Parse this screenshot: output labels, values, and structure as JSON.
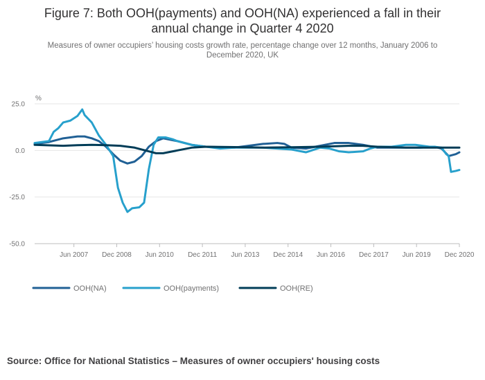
{
  "chart_data": {
    "type": "line",
    "title_line1": "Figure 7: Both OOH(payments) and OOH(NA) experienced a fall in their",
    "title_line2": "annual change in Quarter 4 2020",
    "subtitle_line1": "Measures of owner occupiers’ housing costs growth rate, percentage change over 12 months, January 2006 to",
    "subtitle_line2": "December 2020, UK",
    "ylabel": "%",
    "xlabel": "",
    "ylim": [
      -50,
      25
    ],
    "y_ticks": [
      {
        "value": 25,
        "label": "25.0"
      },
      {
        "value": 0,
        "label": "0.0"
      },
      {
        "value": -25,
        "label": "-25.0"
      },
      {
        "value": -50,
        "label": "-50.0"
      }
    ],
    "x_ticks": [
      {
        "t": 2007.375,
        "label": "Jun 2007"
      },
      {
        "t": 2008.875,
        "label": "Dec 2008"
      },
      {
        "t": 2010.375,
        "label": "Jun 2010"
      },
      {
        "t": 2011.875,
        "label": "Dec 2011"
      },
      {
        "t": 2013.375,
        "label": "Jun 2013"
      },
      {
        "t": 2014.875,
        "label": "Dec 2014"
      },
      {
        "t": 2016.375,
        "label": "Jun 2016"
      },
      {
        "t": 2017.875,
        "label": "Dec 2017"
      },
      {
        "t": 2019.375,
        "label": "Jun 2019"
      },
      {
        "t": 2020.875,
        "label": "Dec 2020"
      }
    ],
    "x_range": [
      2006.0,
      2020.875
    ],
    "series": [
      {
        "name": "OOH(NA)",
        "color": "#206095",
        "points": [
          [
            2006.0,
            3.5
          ],
          [
            2006.5,
            4.5
          ],
          [
            2007.0,
            6.5
          ],
          [
            2007.5,
            7.5
          ],
          [
            2007.75,
            7.5
          ],
          [
            2008.0,
            6.5
          ],
          [
            2008.25,
            5.0
          ],
          [
            2008.5,
            2.0
          ],
          [
            2008.75,
            -2.0
          ],
          [
            2009.0,
            -5.5
          ],
          [
            2009.25,
            -7.0
          ],
          [
            2009.5,
            -6.0
          ],
          [
            2009.75,
            -3.0
          ],
          [
            2010.0,
            2.0
          ],
          [
            2010.25,
            5.0
          ],
          [
            2010.5,
            6.5
          ],
          [
            2011.0,
            5.0
          ],
          [
            2011.5,
            3.0
          ],
          [
            2012.0,
            2.0
          ],
          [
            2013.0,
            1.5
          ],
          [
            2014.0,
            3.5
          ],
          [
            2014.5,
            4.0
          ],
          [
            2014.75,
            3.5
          ],
          [
            2015.0,
            1.5
          ],
          [
            2015.5,
            1.0
          ],
          [
            2016.0,
            2.5
          ],
          [
            2016.5,
            4.0
          ],
          [
            2017.0,
            4.0
          ],
          [
            2017.5,
            3.0
          ],
          [
            2018.0,
            1.5
          ],
          [
            2018.5,
            1.5
          ],
          [
            2019.0,
            1.5
          ],
          [
            2019.5,
            1.5
          ],
          [
            2020.0,
            2.0
          ],
          [
            2020.25,
            1.0
          ],
          [
            2020.5,
            -3.0
          ],
          [
            2020.75,
            -2.0
          ],
          [
            2020.875,
            -1.0
          ]
        ]
      },
      {
        "name": "OOH(payments)",
        "color": "#27a0cc",
        "points": [
          [
            2006.0,
            4.0
          ],
          [
            2006.25,
            4.5
          ],
          [
            2006.5,
            5.0
          ],
          [
            2006.667,
            10.0
          ],
          [
            2006.833,
            12.0
          ],
          [
            2007.0,
            15.0
          ],
          [
            2007.25,
            16.0
          ],
          [
            2007.5,
            18.5
          ],
          [
            2007.667,
            22.0
          ],
          [
            2007.75,
            19.0
          ],
          [
            2008.0,
            15.0
          ],
          [
            2008.25,
            8.0
          ],
          [
            2008.5,
            3.0
          ],
          [
            2008.75,
            -3.0
          ],
          [
            2008.917,
            -20.0
          ],
          [
            2009.083,
            -28.0
          ],
          [
            2009.25,
            -33.0
          ],
          [
            2009.417,
            -31.0
          ],
          [
            2009.667,
            -30.5
          ],
          [
            2009.833,
            -28.0
          ],
          [
            2010.0,
            -10.0
          ],
          [
            2010.167,
            3.0
          ],
          [
            2010.333,
            7.0
          ],
          [
            2010.583,
            7.0
          ],
          [
            2010.833,
            6.0
          ],
          [
            2011.0,
            5.0
          ],
          [
            2011.5,
            3.0
          ],
          [
            2012.0,
            2.0
          ],
          [
            2012.5,
            1.0
          ],
          [
            2013.0,
            1.5
          ],
          [
            2013.5,
            1.5
          ],
          [
            2014.0,
            1.5
          ],
          [
            2014.5,
            1.0
          ],
          [
            2015.0,
            0.5
          ],
          [
            2015.5,
            -1.0
          ],
          [
            2016.0,
            1.5
          ],
          [
            2016.333,
            1.0
          ],
          [
            2016.667,
            -0.5
          ],
          [
            2017.0,
            -1.0
          ],
          [
            2017.5,
            -0.5
          ],
          [
            2017.75,
            1.0
          ],
          [
            2018.0,
            2.0
          ],
          [
            2018.5,
            2.0
          ],
          [
            2019.0,
            3.0
          ],
          [
            2019.333,
            3.0
          ],
          [
            2019.583,
            2.5
          ],
          [
            2019.833,
            2.0
          ],
          [
            2020.0,
            2.0
          ],
          [
            2020.25,
            1.5
          ],
          [
            2020.417,
            -2.0
          ],
          [
            2020.5,
            -3.0
          ],
          [
            2020.583,
            -11.5
          ],
          [
            2020.75,
            -11.0
          ],
          [
            2020.875,
            -10.5
          ]
        ]
      },
      {
        "name": "OOH(RE)",
        "color": "#003c57",
        "points": [
          [
            2006.0,
            3.0
          ],
          [
            2007.0,
            2.5
          ],
          [
            2007.5,
            2.8
          ],
          [
            2008.0,
            3.0
          ],
          [
            2008.5,
            2.8
          ],
          [
            2009.0,
            2.5
          ],
          [
            2009.5,
            1.5
          ],
          [
            2010.0,
            -0.5
          ],
          [
            2010.25,
            -1.5
          ],
          [
            2010.5,
            -1.5
          ],
          [
            2011.0,
            0.0
          ],
          [
            2011.5,
            1.5
          ],
          [
            2012.0,
            2.0
          ],
          [
            2013.0,
            1.8
          ],
          [
            2014.0,
            1.5
          ],
          [
            2015.0,
            1.7
          ],
          [
            2016.0,
            2.0
          ],
          [
            2017.0,
            2.5
          ],
          [
            2017.5,
            2.5
          ],
          [
            2018.0,
            2.0
          ],
          [
            2019.0,
            1.5
          ],
          [
            2020.0,
            1.5
          ],
          [
            2020.875,
            1.5
          ]
        ]
      }
    ],
    "legend": [
      {
        "name": "OOH(NA)",
        "color": "#206095"
      },
      {
        "name": "OOH(payments)",
        "color": "#27a0cc"
      },
      {
        "name": "OOH(RE)",
        "color": "#003c57"
      }
    ]
  },
  "source": "Source: Office for National Statistics – Measures of owner occupiers' housing costs"
}
